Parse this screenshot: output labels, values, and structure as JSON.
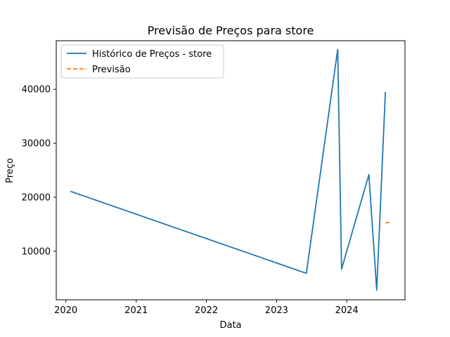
{
  "chart_data": {
    "type": "line",
    "title": "Previsão de Preços para store",
    "xlabel": "Data",
    "ylabel": "Preço",
    "xlim": [
      "2019-11-12",
      "2024-10-30"
    ],
    "ylim": [
      1000,
      49000
    ],
    "x_ticks": [
      "2020",
      "2021",
      "2022",
      "2023",
      "2024"
    ],
    "y_ticks": [
      10000,
      20000,
      30000,
      40000
    ],
    "grid": false,
    "legend_position": "top-left",
    "series": [
      {
        "name": "Histórico de Preços - store",
        "style": "solid",
        "color": "#1f77b4",
        "x": [
          "2020-01-25",
          "2023-06-05",
          "2023-11-15",
          "2023-12-05",
          "2024-04-25",
          "2024-06-05",
          "2024-07-20"
        ],
        "y": [
          21100,
          5900,
          47400,
          6700,
          24200,
          2800,
          39500
        ]
      },
      {
        "name": "Previsão",
        "style": "dashed",
        "color": "#ff7f0e",
        "x": [
          "2024-07-20",
          "2024-08-20"
        ],
        "y": [
          15300,
          15300
        ]
      }
    ]
  }
}
